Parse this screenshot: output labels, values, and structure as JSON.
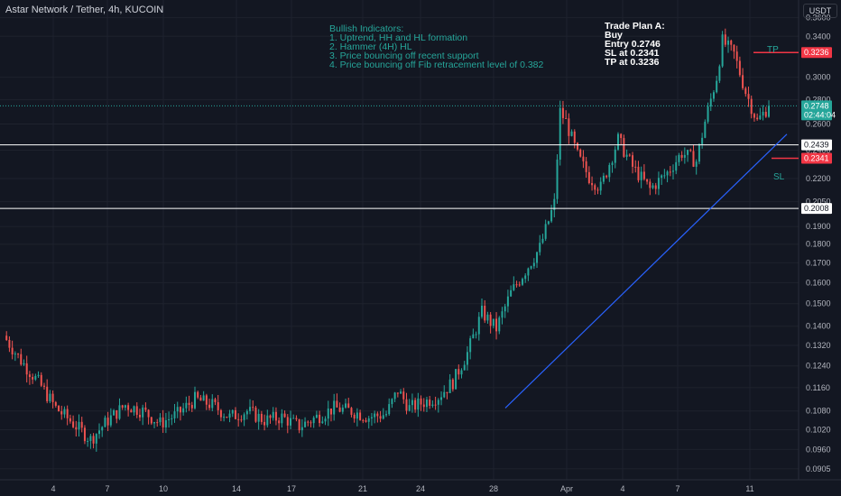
{
  "header": {
    "title": "Astar Network / Tether, 4h, KUCOIN",
    "currency": "USDT"
  },
  "annotations": {
    "bullish": [
      "Bullish Indicators:",
      "1. Uptrend, HH and HL formation",
      "2. Hammer (4H) HL",
      "3. Price bouncing off recent support",
      "4. Price bouncing off Fib retracement level of 0.382"
    ],
    "plan": [
      "Trade Plan A:",
      "Buy",
      "Entry 0.2746",
      "SL at 0.2341",
      "TP at 0.3236"
    ],
    "tp_label": "TP",
    "sl_label": "SL"
  },
  "colors": {
    "background": "#131722",
    "grid": "#1e222d",
    "up": "#26a69a",
    "down": "#ef5350",
    "trendline": "#2962ff",
    "level": "#ffffff",
    "stop": "#f23645"
  },
  "chart_data": {
    "type": "candlestick",
    "title": "Astar Network / Tether, 4h, KUCOIN",
    "y_axis": {
      "scale": "log",
      "unit": "USDT",
      "range": [
        0.0875,
        0.38
      ],
      "ticks": [
        "0.3600",
        "0.3400",
        "0.3000",
        "0.2800",
        "0.2600",
        "0.2400",
        "0.2200",
        "0.2050",
        "0.1900",
        "0.1800",
        "0.1700",
        "0.1600",
        "0.1500",
        "0.1400",
        "0.1320",
        "0.1240",
        "0.1160",
        "0.1080",
        "0.1020",
        "0.0960",
        "0.0905"
      ]
    },
    "x_axis": {
      "ticks": [
        "4",
        "7",
        "10",
        "14",
        "17",
        "21",
        "24",
        "28",
        "Apr",
        "4",
        "7",
        "11"
      ]
    },
    "price_levels": [
      {
        "name": "Take profit",
        "value": 0.3236
      },
      {
        "name": "Entry / last price",
        "value": 0.2748,
        "countdown": "02:44:04"
      },
      {
        "name": "Resistance",
        "value": 0.2439
      },
      {
        "name": "Stop loss",
        "value": 0.2341
      },
      {
        "name": "Support",
        "value": 0.2008
      }
    ],
    "trendline": {
      "from_price": 0.109,
      "to_price": 0.252
    },
    "price_path": [
      [
        0,
        0.136
      ],
      [
        6,
        0.126
      ],
      [
        12,
        0.118
      ],
      [
        18,
        0.109
      ],
      [
        24,
        0.104
      ],
      [
        30,
        0.099
      ],
      [
        36,
        0.105
      ],
      [
        42,
        0.11
      ],
      [
        48,
        0.108
      ],
      [
        54,
        0.104
      ],
      [
        60,
        0.107
      ],
      [
        66,
        0.112
      ],
      [
        72,
        0.11
      ],
      [
        78,
        0.106
      ],
      [
        84,
        0.108
      ],
      [
        90,
        0.105
      ],
      [
        96,
        0.106
      ],
      [
        102,
        0.103
      ],
      [
        108,
        0.106
      ],
      [
        114,
        0.109
      ],
      [
        120,
        0.108
      ],
      [
        126,
        0.106
      ],
      [
        132,
        0.107
      ],
      [
        136,
        0.115
      ],
      [
        140,
        0.109
      ],
      [
        145,
        0.111
      ],
      [
        150,
        0.113
      ],
      [
        155,
        0.118
      ],
      [
        160,
        0.129
      ],
      [
        165,
        0.146
      ],
      [
        170,
        0.139
      ],
      [
        175,
        0.155
      ],
      [
        180,
        0.166
      ],
      [
        185,
        0.178
      ],
      [
        190,
        0.204
      ],
      [
        192,
        0.27
      ],
      [
        194,
        0.262
      ],
      [
        198,
        0.236
      ],
      [
        202,
        0.221
      ],
      [
        206,
        0.214
      ],
      [
        212,
        0.248
      ],
      [
        217,
        0.228
      ],
      [
        223,
        0.213
      ],
      [
        229,
        0.224
      ],
      [
        234,
        0.238
      ],
      [
        239,
        0.232
      ],
      [
        242,
        0.262
      ],
      [
        246,
        0.3
      ],
      [
        248,
        0.335
      ],
      [
        252,
        0.322
      ],
      [
        256,
        0.287
      ],
      [
        260,
        0.262
      ],
      [
        264,
        0.2748
      ]
    ]
  }
}
